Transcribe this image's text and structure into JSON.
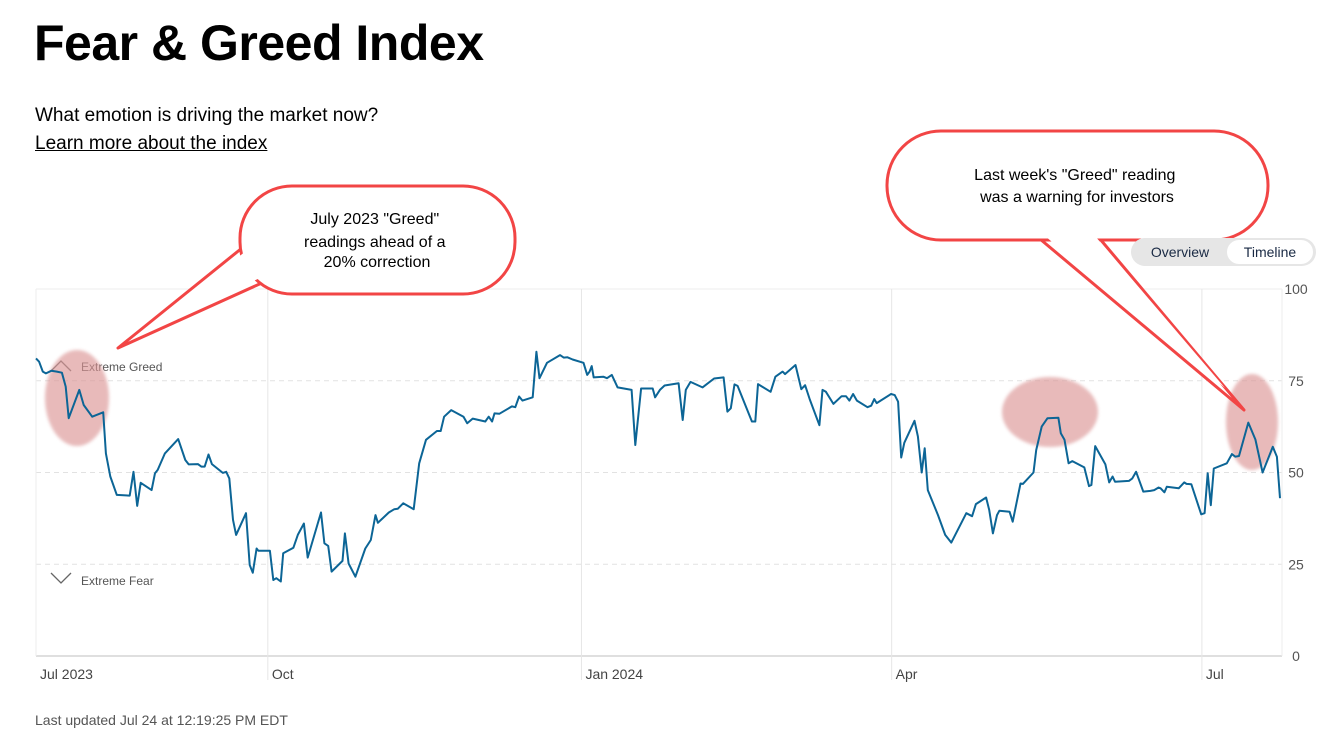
{
  "header": {
    "title": "Fear & Greed Index",
    "subtitle": "What emotion is driving the market now?",
    "learn_more_link": "Learn more about the index"
  },
  "view_toggle": {
    "options": [
      "Overview",
      "Timeline"
    ],
    "selected": "Timeline"
  },
  "annotations": {
    "left_callout": [
      "July 2023 \"Greed\"",
      "readings ahead of a",
      "20% correction"
    ],
    "right_callout": [
      "Last week's \"Greed\" reading",
      "was a warning for investors"
    ],
    "callout_color": "#f24545",
    "highlight_color": "#dc9696"
  },
  "footer": {
    "last_updated": "Last updated Jul 24 at 12:19:25 PM EDT"
  },
  "chart_data": {
    "type": "line",
    "title": "Fear & Greed Index",
    "xlabel": "",
    "ylabel": "",
    "x_unit": "days since Jul 24 2023",
    "xlim": [
      0,
      365.5
    ],
    "ylim": [
      0,
      100
    ],
    "y_ticks": [
      "0",
      "25",
      "50",
      "75",
      "100"
    ],
    "x_ticks": [
      {
        "label": "Jul 2023",
        "day": 0
      },
      {
        "label": "Oct",
        "day": 68
      },
      {
        "label": "Jan 2024",
        "day": 160
      },
      {
        "label": "Apr",
        "day": 251
      },
      {
        "label": "Jul",
        "day": 342
      }
    ],
    "zone_labels": {
      "greed": "Extreme Greed",
      "fear": "Extreme Fear"
    },
    "line_color": "#0c6596",
    "points": [
      [
        0,
        81.1
      ],
      [
        0.9,
        80.2
      ],
      [
        2,
        77.5
      ],
      [
        2.9,
        77.0
      ],
      [
        4.5,
        77.7
      ],
      [
        6.1,
        77.5
      ],
      [
        7.6,
        77.2
      ],
      [
        8.7,
        73.4
      ],
      [
        9.6,
        64.8
      ],
      [
        12.7,
        72.5
      ],
      [
        14,
        68.4
      ],
      [
        16.5,
        65.2
      ],
      [
        19.7,
        66.4
      ],
      [
        20.5,
        55.2
      ],
      [
        21.8,
        48.9
      ],
      [
        23.7,
        43.9
      ],
      [
        27.5,
        43.7
      ],
      [
        28.6,
        50.2
      ],
      [
        29.7,
        40.9
      ],
      [
        30.7,
        47.2
      ],
      [
        33.9,
        45.2
      ],
      [
        34.9,
        49.8
      ],
      [
        35.7,
        50.7
      ],
      [
        37.8,
        55.2
      ],
      [
        41.7,
        59.1
      ],
      [
        43.8,
        53.4
      ],
      [
        44.8,
        52.2
      ],
      [
        47.5,
        52.3
      ],
      [
        48.5,
        51.6
      ],
      [
        49.5,
        51.6
      ],
      [
        50.6,
        54.9
      ],
      [
        51.6,
        52.3
      ],
      [
        54.8,
        49.9
      ],
      [
        55.8,
        50.2
      ],
      [
        56.7,
        48.4
      ],
      [
        57.8,
        37.1
      ],
      [
        58.7,
        33.0
      ],
      [
        61.6,
        38.9
      ],
      [
        62.7,
        24.8
      ],
      [
        63.6,
        22.7
      ],
      [
        64.7,
        29.3
      ],
      [
        65.2,
        28.7
      ],
      [
        68.6,
        28.7
      ],
      [
        69.6,
        20.7
      ],
      [
        70.5,
        21.2
      ],
      [
        71.8,
        20.3
      ],
      [
        72.5,
        28.0
      ],
      [
        75.5,
        29.5
      ],
      [
        76.8,
        33.0
      ],
      [
        78.6,
        36.1
      ],
      [
        79.7,
        26.8
      ],
      [
        83.6,
        39.1
      ],
      [
        84.6,
        30.7
      ],
      [
        85.7,
        30.0
      ],
      [
        86.7,
        23.0
      ],
      [
        89.9,
        25.9
      ],
      [
        90.6,
        33.4
      ],
      [
        91.7,
        25.2
      ],
      [
        93.7,
        21.6
      ],
      [
        96.6,
        29.3
      ],
      [
        98.2,
        31.6
      ],
      [
        99.6,
        38.4
      ],
      [
        100.3,
        36.3
      ],
      [
        103.5,
        39.1
      ],
      [
        105.1,
        40.0
      ],
      [
        106.1,
        40.1
      ],
      [
        107.7,
        41.6
      ],
      [
        110.8,
        40.0
      ],
      [
        112.4,
        52.5
      ],
      [
        114.4,
        58.9
      ],
      [
        117.6,
        61.3
      ],
      [
        118.7,
        61.3
      ],
      [
        119.7,
        65.2
      ],
      [
        121.8,
        67.0
      ],
      [
        125.4,
        65.2
      ],
      [
        126.5,
        63.4
      ],
      [
        128.1,
        64.7
      ],
      [
        131.8,
        63.9
      ],
      [
        132.8,
        65.2
      ],
      [
        133.8,
        63.9
      ],
      [
        134.5,
        66.1
      ],
      [
        135.9,
        66.0
      ],
      [
        139.6,
        68.0
      ],
      [
        140.6,
        67.8
      ],
      [
        141.7,
        70.7
      ],
      [
        142.7,
        69.6
      ],
      [
        145.7,
        70.5
      ],
      [
        146.8,
        82.9
      ],
      [
        147.7,
        75.7
      ],
      [
        149.9,
        79.9
      ],
      [
        153.7,
        82.0
      ],
      [
        154.8,
        81.3
      ],
      [
        155.9,
        81.4
      ],
      [
        157.4,
        80.8
      ],
      [
        160.6,
        79.9
      ],
      [
        161.7,
        76.6
      ],
      [
        162.4,
        77.5
      ],
      [
        163,
        79.0
      ],
      [
        163.6,
        75.9
      ],
      [
        166.4,
        76.1
      ],
      [
        167.5,
        75.7
      ],
      [
        168.9,
        76.6
      ],
      [
        170.6,
        73.2
      ],
      [
        174.7,
        72.5
      ],
      [
        175.8,
        57.5
      ],
      [
        177.5,
        72.9
      ],
      [
        180.9,
        72.9
      ],
      [
        181.6,
        70.5
      ],
      [
        183,
        72.5
      ],
      [
        184.4,
        73.7
      ],
      [
        188.5,
        74.3
      ],
      [
        189.7,
        64.3
      ],
      [
        190.6,
        72.5
      ],
      [
        192,
        74.7
      ],
      [
        195.5,
        73.2
      ],
      [
        198.9,
        75.6
      ],
      [
        201.7,
        75.9
      ],
      [
        202.8,
        66.6
      ],
      [
        203.8,
        67.5
      ],
      [
        204.9,
        74.0
      ],
      [
        205.8,
        73.6
      ],
      [
        210,
        63.9
      ],
      [
        211,
        63.9
      ],
      [
        211.8,
        74.1
      ],
      [
        215.5,
        72.0
      ],
      [
        216.9,
        76.1
      ],
      [
        219,
        77.5
      ],
      [
        219.7,
        76.8
      ],
      [
        222.8,
        79.3
      ],
      [
        224.5,
        72.7
      ],
      [
        225.6,
        73.8
      ],
      [
        227,
        69.9
      ],
      [
        229.8,
        62.9
      ],
      [
        230.7,
        72.5
      ],
      [
        231.7,
        72.0
      ],
      [
        233.9,
        68.7
      ],
      [
        236.3,
        70.8
      ],
      [
        237.6,
        70.8
      ],
      [
        238.6,
        69.6
      ],
      [
        239.7,
        71.4
      ],
      [
        240.8,
        69.6
      ],
      [
        243.9,
        67.8
      ],
      [
        245,
        68.2
      ],
      [
        245.9,
        70.0
      ],
      [
        246.6,
        68.9
      ],
      [
        250.8,
        71.4
      ],
      [
        251.9,
        71.1
      ],
      [
        252.9,
        69.3
      ],
      [
        253.8,
        54.1
      ],
      [
        254.7,
        58.1
      ],
      [
        257.7,
        64.1
      ],
      [
        258.7,
        59.8
      ],
      [
        259.8,
        50.0
      ],
      [
        260.7,
        56.6
      ],
      [
        261.6,
        45.2
      ],
      [
        264.6,
        38.4
      ],
      [
        266.7,
        33.0
      ],
      [
        268.5,
        30.9
      ],
      [
        272.9,
        38.9
      ],
      [
        274.6,
        38.1
      ],
      [
        275.7,
        41.4
      ],
      [
        278.7,
        43.2
      ],
      [
        279.6,
        39.8
      ],
      [
        280.7,
        33.4
      ],
      [
        281.9,
        38.4
      ],
      [
        282.6,
        39.6
      ],
      [
        285.6,
        39.3
      ],
      [
        286.5,
        36.6
      ],
      [
        288.8,
        47.0
      ],
      [
        289.5,
        46.9
      ],
      [
        292.6,
        50.0
      ],
      [
        293.4,
        56.1
      ],
      [
        295,
        62.5
      ],
      [
        296.7,
        64.8
      ],
      [
        299.9,
        64.9
      ],
      [
        300.6,
        60.7
      ],
      [
        301.7,
        58.9
      ],
      [
        302.9,
        52.5
      ],
      [
        304,
        53.1
      ],
      [
        307.5,
        51.4
      ],
      [
        308.9,
        46.3
      ],
      [
        309.6,
        46.6
      ],
      [
        310.7,
        57.2
      ],
      [
        313.7,
        52.2
      ],
      [
        314.8,
        47.3
      ],
      [
        315.8,
        48.9
      ],
      [
        316.5,
        47.5
      ],
      [
        320.6,
        47.7
      ],
      [
        321.6,
        48.4
      ],
      [
        322.7,
        50.2
      ],
      [
        324.8,
        44.8
      ],
      [
        326.9,
        45.0
      ],
      [
        328,
        45.2
      ],
      [
        329.3,
        45.9
      ],
      [
        329.9,
        45.7
      ],
      [
        331,
        44.6
      ],
      [
        331.7,
        46.1
      ],
      [
        335.2,
        45.7
      ],
      [
        336.8,
        47.3
      ],
      [
        337.5,
        46.9
      ],
      [
        338.9,
        46.8
      ],
      [
        341.8,
        38.6
      ],
      [
        342.8,
        38.9
      ],
      [
        343.7,
        49.8
      ],
      [
        344.6,
        41.1
      ],
      [
        345.5,
        51.1
      ],
      [
        349.3,
        52.5
      ],
      [
        350.8,
        55.0
      ],
      [
        351.8,
        54.3
      ],
      [
        352.9,
        54.5
      ],
      [
        355.6,
        63.6
      ],
      [
        357.7,
        59.0
      ],
      [
        359.8,
        50.0
      ],
      [
        362.8,
        57.0
      ],
      [
        364,
        54.3
      ],
      [
        364.9,
        43.0
      ]
    ]
  }
}
